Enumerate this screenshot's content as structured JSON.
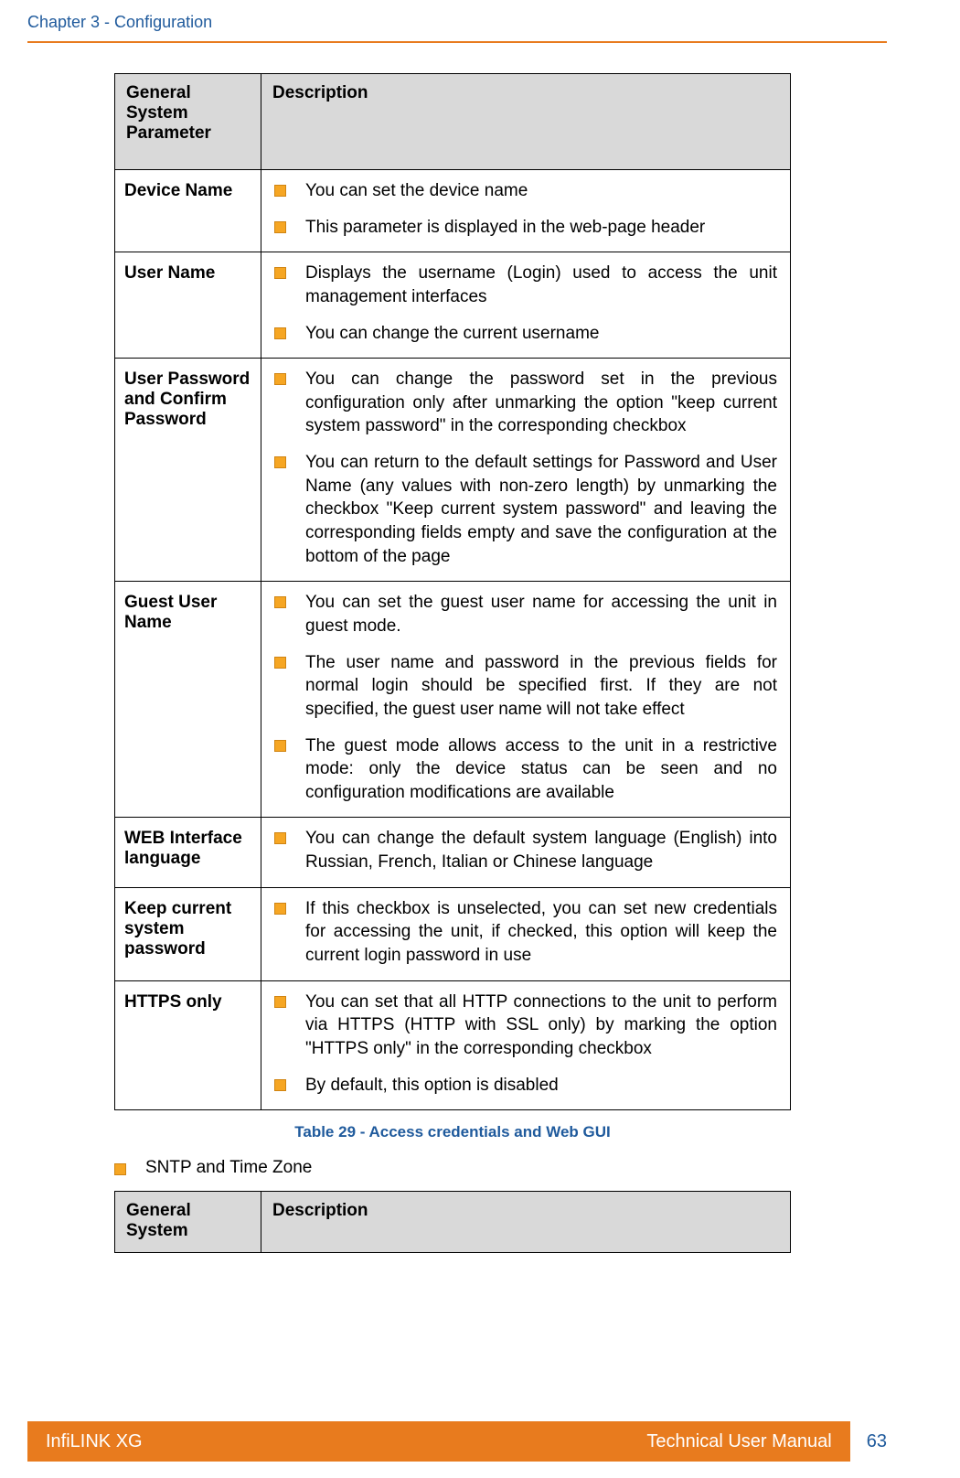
{
  "header": {
    "chapter": "Chapter 3 - Configuration"
  },
  "table1": {
    "col1_header": "General System Parameter",
    "col2_header": "Description",
    "rows": [
      {
        "param": "Device Name",
        "bullets": [
          "You can set the device name",
          "This parameter is displayed in the web-page header"
        ]
      },
      {
        "param": "User Name",
        "bullets": [
          "Displays the username (Login) used to access the unit management interfaces",
          "You can change the current username"
        ]
      },
      {
        "param": "User Password and Confirm Password",
        "bullets": [
          "You can change the password set in the previous configuration only after unmarking the option \"keep current system password\" in the corresponding checkbox",
          "You can return to the default settings for Password and User Name (any values with non-zero length) by unmarking the checkbox \"Keep current system password\" and leaving the corresponding fields empty and save the configuration at the bottom of the page"
        ]
      },
      {
        "param": "Guest User Name",
        "bullets": [
          "You can set the guest user name for accessing the unit in guest mode.",
          "The user name and password in the previous fields for normal login should be specified first. If they are not specified, the guest user name will not take effect",
          "The guest mode allows access to the unit in a restrictive mode: only the device status can be seen and no configuration modifications are available"
        ]
      },
      {
        "param": "WEB Interface language",
        "bullets": [
          "You can change the default system language (English) into Russian, French, Italian or Chinese language"
        ]
      },
      {
        "param": "Keep current system password",
        "bullets": [
          "If this checkbox is unselected, you can set new credentials for accessing the unit, if checked, this option will keep the current login password in use"
        ]
      },
      {
        "param": "HTTPS only",
        "bullets": [
          "You can set that all HTTP connections to the unit to perform via HTTPS (HTTP with SSL only) by marking the option \"HTTPS only\" in the corresponding checkbox",
          "By default, this option is disabled"
        ]
      }
    ]
  },
  "caption1": "Table 29 - Access credentials and Web GUI",
  "section2_title": "SNTP and Time Zone",
  "table2": {
    "col1_header": "General System",
    "col2_header": "Description"
  },
  "footer": {
    "product": "InfiLINK XG",
    "doc": "Technical User Manual",
    "page": "63"
  },
  "colors": {
    "accent_blue": "#1f5a9c",
    "accent_orange": "#e87b1e",
    "bullet_fill": "#f6a623",
    "header_gray": "#d9d9d9"
  }
}
